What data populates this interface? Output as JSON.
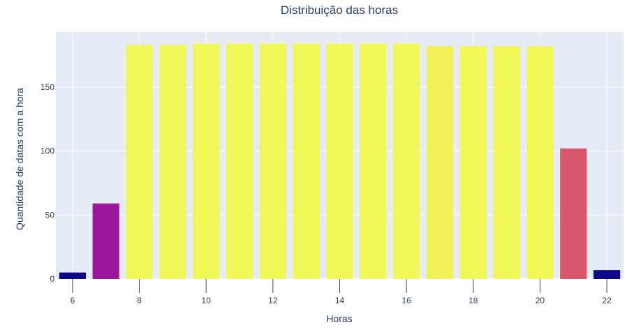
{
  "chart_data": {
    "type": "bar",
    "title": "Distribuição das horas",
    "xlabel": "Horas",
    "ylabel": "Quantidade de datas com a hora",
    "x": [
      6,
      7,
      8,
      9,
      10,
      11,
      12,
      13,
      14,
      15,
      16,
      17,
      18,
      19,
      20,
      21,
      22
    ],
    "values": [
      5,
      59,
      183,
      183,
      184,
      184,
      184,
      184,
      184,
      184,
      184,
      182,
      182,
      182,
      182,
      102,
      7
    ],
    "colors": [
      "#0d0887",
      "#9c179e",
      "#f0f757",
      "#f0f757",
      "#f0f757",
      "#f0f757",
      "#f0f757",
      "#f0f757",
      "#f0f757",
      "#f0f757",
      "#f0f757",
      "#f1f056",
      "#f0f757",
      "#f0f757",
      "#f0f757",
      "#d8576b",
      "#0d0887"
    ],
    "xticks": [
      6,
      8,
      10,
      12,
      14,
      16,
      18,
      20,
      22
    ],
    "yticks": [
      0,
      50,
      100,
      150
    ],
    "ylim": [
      0,
      193
    ],
    "xlim": [
      5.5,
      22.5
    ],
    "grid": true,
    "plot_bgcolor": "#e5ecf6",
    "text_color": "#2a3f5f"
  }
}
